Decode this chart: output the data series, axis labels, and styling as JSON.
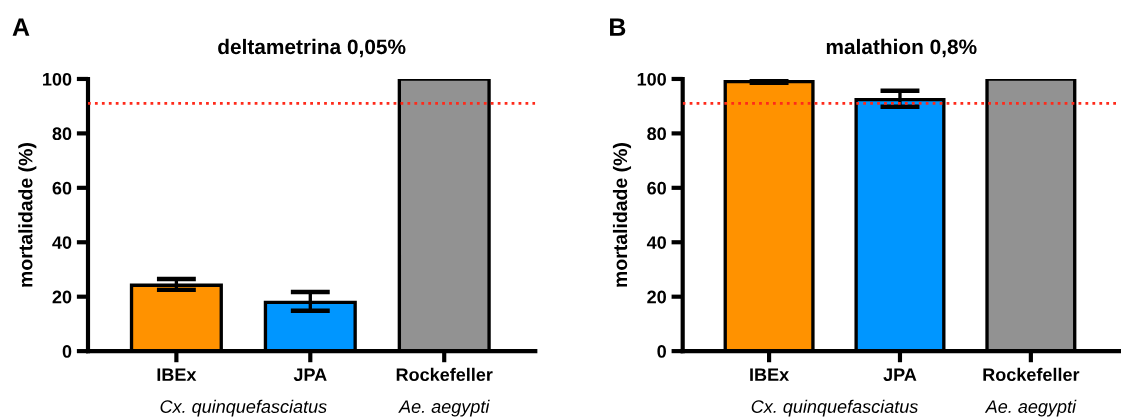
{
  "chart_data": [
    {
      "type": "bar",
      "title": "deltametrina 0,05%",
      "ylabel": "mortalidade (%)",
      "categories": [
        "IBEx",
        "JPA",
        "Rockefeller"
      ],
      "values": [
        24.2,
        17.9,
        100
      ],
      "errors": [
        [
          22.5,
          26.5
        ],
        [
          14.8,
          21.7
        ],
        null
      ],
      "colors": [
        "#ff9200",
        "#0096ff",
        "#929292"
      ],
      "ylim": [
        0,
        100
      ],
      "yticks": [
        0,
        20,
        40,
        60,
        80,
        100
      ],
      "ref_lines": [
        {
          "axis": "y",
          "value": 91,
          "color": "#ff2a1a",
          "line_style": "dotted"
        }
      ],
      "annotations": [
        "A",
        "Cx. quinquefasciatus",
        "Ae. aegypti"
      ]
    },
    {
      "type": "bar",
      "title": "malathion 0,8%",
      "ylabel": "mortalidade (%)",
      "categories": [
        "IBEx",
        "JPA",
        "Rockefeller"
      ],
      "values": [
        99,
        92.4,
        100
      ],
      "errors": [
        [
          98.6,
          100
        ],
        [
          89.8,
          95.7
        ],
        null
      ],
      "colors": [
        "#ff9200",
        "#0096ff",
        "#929292"
      ],
      "ylim": [
        0,
        100
      ],
      "yticks": [
        0,
        20,
        40,
        60,
        80,
        100
      ],
      "ref_lines": [
        {
          "axis": "y",
          "value": 91,
          "color": "#ff2a1a",
          "line_style": "dotted"
        }
      ],
      "annotations": [
        "B",
        "Cx. quinquefasciatus",
        "Ae. aegypti"
      ]
    }
  ]
}
